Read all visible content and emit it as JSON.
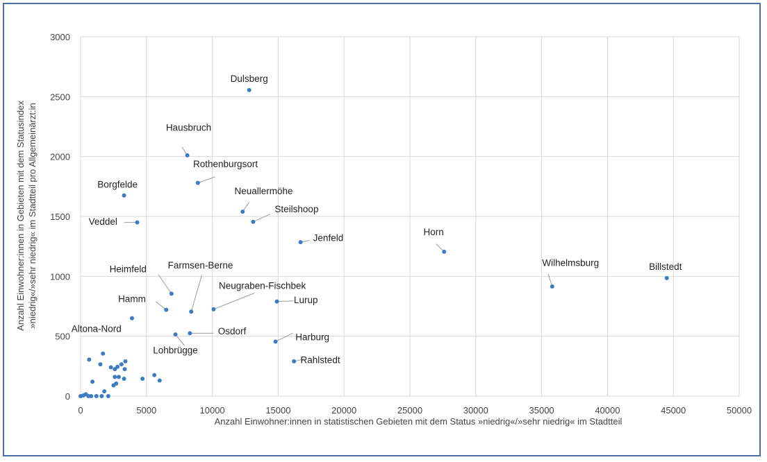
{
  "chart_data": {
    "type": "scatter",
    "xlabel": "Anzahl Einwohner:innen in statistischen Gebieten mit dem Status »niedrig«/»sehr niedrig« im Stadtteil",
    "ylabel_line1": "Anzahl Einwohner:innen in Gebieten mit dem Statusindex",
    "ylabel_line2": "»niedrig«/»sehr niedrig« im Stadtteil pro Allgemeinärzt:in",
    "xlim": [
      0,
      50000
    ],
    "ylim": [
      0,
      3000
    ],
    "xticks": [
      0,
      5000,
      10000,
      15000,
      20000,
      25000,
      30000,
      35000,
      40000,
      45000,
      50000
    ],
    "yticks": [
      0,
      500,
      1000,
      1500,
      2000,
      2500,
      3000
    ],
    "grid": true,
    "marker_color": "#3d7cc1",
    "labeled_points": [
      {
        "label": "Dulsberg",
        "x": 12800,
        "y": 2555
      },
      {
        "label": "Hausbruch",
        "x": 8100,
        "y": 2010
      },
      {
        "label": "Rothenburgsort",
        "x": 8900,
        "y": 1780
      },
      {
        "label": "Borgfelde",
        "x": 3300,
        "y": 1675
      },
      {
        "label": "Neuallermöhe",
        "x": 12300,
        "y": 1540
      },
      {
        "label": "Veddel",
        "x": 4300,
        "y": 1450
      },
      {
        "label": "Steilshoop",
        "x": 13100,
        "y": 1455
      },
      {
        "label": "Jenfeld",
        "x": 16700,
        "y": 1285
      },
      {
        "label": "Horn",
        "x": 27600,
        "y": 1205
      },
      {
        "label": "Wilhelmsburg",
        "x": 35800,
        "y": 915
      },
      {
        "label": "Billstedt",
        "x": 44500,
        "y": 985
      },
      {
        "label": "Heimfeld",
        "x": 6900,
        "y": 855
      },
      {
        "label": "Farmsen-Berne",
        "x": 8400,
        "y": 705
      },
      {
        "label": "Hamm",
        "x": 6500,
        "y": 720
      },
      {
        "label": "Neugraben-Fischbek",
        "x": 10100,
        "y": 725
      },
      {
        "label": "Lurup",
        "x": 14900,
        "y": 790
      },
      {
        "label": "Altona-Nord",
        "x": 3900,
        "y": 650
      },
      {
        "label": "Osdorf",
        "x": 8300,
        "y": 525
      },
      {
        "label": "Lohbrügge",
        "x": 7200,
        "y": 515
      },
      {
        "label": "Harburg",
        "x": 14800,
        "y": 455
      },
      {
        "label": "Rahlstedt",
        "x": 16200,
        "y": 290
      }
    ],
    "unlabeled_points": [
      {
        "x": 0,
        "y": 0
      },
      {
        "x": 200,
        "y": 5
      },
      {
        "x": 400,
        "y": 15
      },
      {
        "x": 600,
        "y": 0
      },
      {
        "x": 650,
        "y": 305
      },
      {
        "x": 800,
        "y": 0
      },
      {
        "x": 900,
        "y": 120
      },
      {
        "x": 1200,
        "y": 0
      },
      {
        "x": 1500,
        "y": 265
      },
      {
        "x": 1600,
        "y": 0
      },
      {
        "x": 1700,
        "y": 355
      },
      {
        "x": 1800,
        "y": 40
      },
      {
        "x": 2100,
        "y": 0
      },
      {
        "x": 2300,
        "y": 240
      },
      {
        "x": 2500,
        "y": 90
      },
      {
        "x": 2600,
        "y": 225
      },
      {
        "x": 2600,
        "y": 160
      },
      {
        "x": 2700,
        "y": 105
      },
      {
        "x": 2800,
        "y": 245
      },
      {
        "x": 2900,
        "y": 160
      },
      {
        "x": 3100,
        "y": 265
      },
      {
        "x": 3300,
        "y": 145
      },
      {
        "x": 3350,
        "y": 225
      },
      {
        "x": 3400,
        "y": 290
      },
      {
        "x": 4700,
        "y": 145
      },
      {
        "x": 5600,
        "y": 175
      },
      {
        "x": 6000,
        "y": 130
      }
    ],
    "labels": [
      {
        "text": "Dulsberg",
        "tx": 12800,
        "ty": 2625,
        "anchor": "middle"
      },
      {
        "text": "Hausbruch",
        "tx": 8200,
        "ty": 2215,
        "anchor": "middle"
      },
      {
        "text": "Rothenburgsort",
        "tx": 11000,
        "ty": 1910,
        "anchor": "middle"
      },
      {
        "text": "Borgfelde",
        "tx": 2800,
        "ty": 1740,
        "anchor": "middle"
      },
      {
        "text": "Neuallermöhe",
        "tx": 13900,
        "ty": 1685,
        "anchor": "middle"
      },
      {
        "text": "Veddel",
        "tx": 1700,
        "ty": 1430,
        "anchor": "middle"
      },
      {
        "text": "Steilshoop",
        "tx": 16400,
        "ty": 1535,
        "anchor": "middle"
      },
      {
        "text": "Jenfeld",
        "tx": 18800,
        "ty": 1295,
        "anchor": "middle"
      },
      {
        "text": "Horn",
        "tx": 26800,
        "ty": 1345,
        "anchor": "middle"
      },
      {
        "text": "Wilhelmsburg",
        "tx": 37200,
        "ty": 1085,
        "anchor": "middle"
      },
      {
        "text": "Billstedt",
        "tx": 44400,
        "ty": 1055,
        "anchor": "middle"
      },
      {
        "text": "Heimfeld",
        "tx": 3600,
        "ty": 1035,
        "anchor": "middle"
      },
      {
        "text": "Farmsen-Berne",
        "tx": 9100,
        "ty": 1065,
        "anchor": "middle"
      },
      {
        "text": "Hamm",
        "tx": 3900,
        "ty": 785,
        "anchor": "middle"
      },
      {
        "text": "Neugraben-Fischbek",
        "tx": 13800,
        "ty": 895,
        "anchor": "middle"
      },
      {
        "text": "Lurup",
        "tx": 17100,
        "ty": 775,
        "anchor": "middle"
      },
      {
        "text": "Altona-Nord",
        "tx": 1200,
        "ty": 535,
        "anchor": "middle"
      },
      {
        "text": "Osdorf",
        "tx": 11500,
        "ty": 515,
        "anchor": "middle"
      },
      {
        "text": "Lohbrügge",
        "tx": 7200,
        "ty": 355,
        "anchor": "middle"
      },
      {
        "text": "Harburg",
        "tx": 17600,
        "ty": 465,
        "anchor": "middle"
      },
      {
        "text": "Rahlstedt",
        "tx": 18200,
        "ty": 275,
        "anchor": "middle"
      }
    ],
    "leaders": [
      {
        "x1": 8100,
        "y1": 2010,
        "x2": 7700,
        "y2": 2080
      },
      {
        "x1": 8900,
        "y1": 1780,
        "x2": 10200,
        "y2": 1830
      },
      {
        "x1": 12300,
        "y1": 1540,
        "x2": 12800,
        "y2": 1620
      },
      {
        "x1": 4300,
        "y1": 1450,
        "x2": 3300,
        "y2": 1450
      },
      {
        "x1": 13100,
        "y1": 1455,
        "x2": 14400,
        "y2": 1520
      },
      {
        "x1": 16700,
        "y1": 1285,
        "x2": 17400,
        "y2": 1300
      },
      {
        "x1": 27600,
        "y1": 1205,
        "x2": 27000,
        "y2": 1270
      },
      {
        "x1": 35800,
        "y1": 915,
        "x2": 35500,
        "y2": 1020
      },
      {
        "x1": 6900,
        "y1": 855,
        "x2": 5900,
        "y2": 1015
      },
      {
        "x1": 8400,
        "y1": 705,
        "x2": 9200,
        "y2": 1010
      },
      {
        "x1": 6500,
        "y1": 720,
        "x2": 5700,
        "y2": 790
      },
      {
        "x1": 10100,
        "y1": 725,
        "x2": 13200,
        "y2": 860
      },
      {
        "x1": 14900,
        "y1": 790,
        "x2": 16200,
        "y2": 795
      },
      {
        "x1": 8300,
        "y1": 525,
        "x2": 10100,
        "y2": 525
      },
      {
        "x1": 7200,
        "y1": 515,
        "x2": 7900,
        "y2": 420
      },
      {
        "x1": 14800,
        "y1": 455,
        "x2": 16100,
        "y2": 525
      },
      {
        "x1": 16200,
        "y1": 290,
        "x2": 17000,
        "y2": 310
      }
    ]
  }
}
